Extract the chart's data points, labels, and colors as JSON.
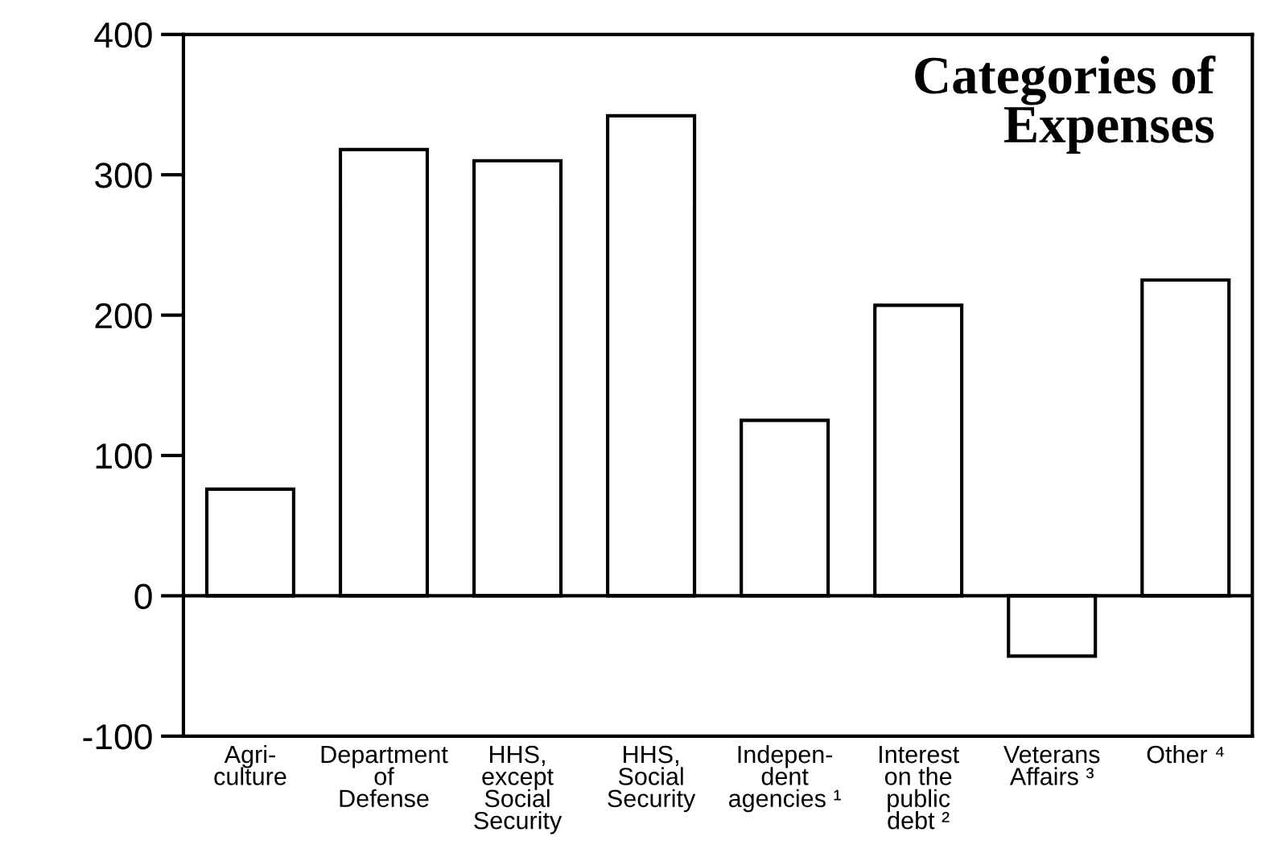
{
  "chart_data": {
    "type": "bar",
    "title": "Categories of\nExpenses",
    "categories": [
      "Agri-\nculture",
      "Department\nof\nDefense",
      "HHS,\nexcept\nSocial\nSecurity",
      "HHS,\nSocial\nSecurity",
      "Indepen-\ndent\nagencies ¹",
      "Interest\non the\npublic\ndebt ²",
      "Veterans\nAffairs ³",
      "Other ⁴"
    ],
    "values": [
      76,
      318,
      310,
      342,
      125,
      207,
      -43,
      225
    ],
    "color": "#ffffff",
    "ylim": [
      -100,
      400
    ],
    "yticks": [
      -100,
      0,
      100,
      200,
      300,
      400
    ],
    "ref_lines": [
      {
        "axis": "y",
        "value": 0,
        "color": "#000000"
      }
    ],
    "grid": false,
    "legend": false
  }
}
